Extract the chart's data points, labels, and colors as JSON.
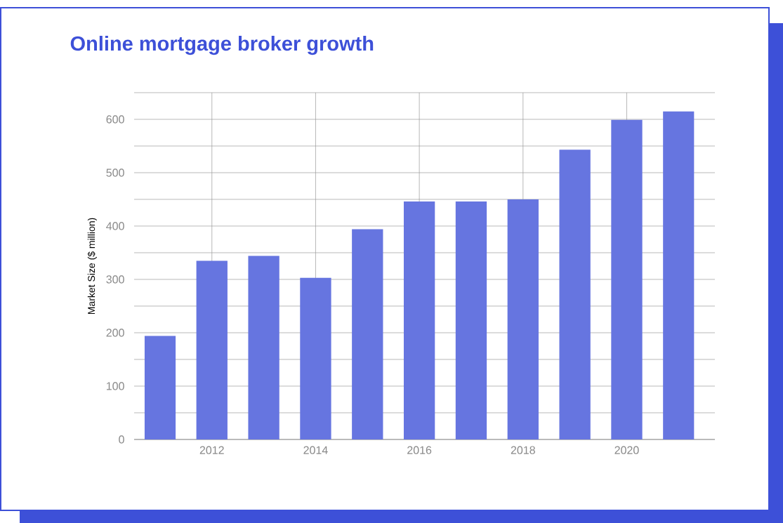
{
  "chart_data": {
    "type": "bar",
    "title": "Online mortgage broker growth",
    "ylabel": "Market Size ($ million)",
    "x": [
      2011,
      2012,
      2013,
      2014,
      2015,
      2016,
      2017,
      2018,
      2019,
      2020,
      2021
    ],
    "values": [
      194,
      335,
      344,
      303,
      394,
      446,
      446,
      450,
      543,
      599,
      615
    ],
    "color": "#6675e0",
    "xlim": [
      2010.5,
      2021.7
    ],
    "xticks": [
      2012,
      2014,
      2016,
      2018,
      2020
    ],
    "ylim": [
      0,
      650
    ],
    "yticks": [
      0,
      {
        "value": 50,
        "label": null
      },
      100,
      {
        "value": 150,
        "label": null
      },
      200,
      {
        "value": 250,
        "label": null
      },
      300,
      {
        "value": 350,
        "label": null
      },
      400,
      {
        "value": 450,
        "label": null
      },
      500,
      {
        "value": 550,
        "label": null
      },
      600,
      {
        "value": 650,
        "label": null
      }
    ],
    "grid": true
  }
}
